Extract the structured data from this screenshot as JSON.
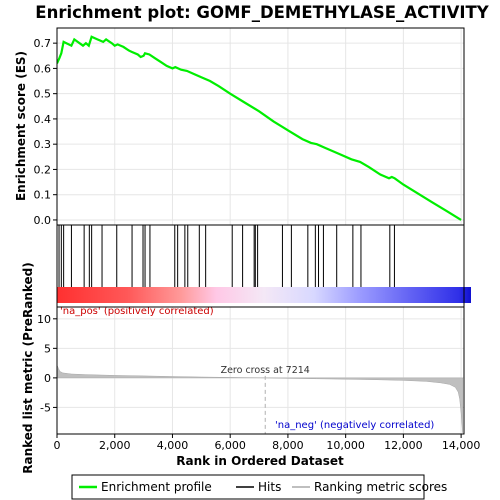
{
  "chart_data": {
    "type": "line",
    "title": "Enrichment plot: GOMF_DEMETHYLASE_ACTIVITY",
    "xlabel": "Rank in Ordered Dataset",
    "ylabel_top": "Enrichment score (ES)",
    "ylabel_bottom": "Ranked list metric (PreRanked)",
    "x_range": [
      0,
      14100
    ],
    "x_ticks": [
      0,
      2000,
      4000,
      6000,
      8000,
      10000,
      12000,
      14000
    ],
    "x_tick_labels": [
      "0",
      "2,000",
      "4,000",
      "6,000",
      "8,000",
      "10,000",
      "12,000",
      "14,000"
    ],
    "es_range": [
      -0.02,
      0.76
    ],
    "es_ticks": [
      0.0,
      0.1,
      0.2,
      0.3,
      0.4,
      0.5,
      0.6,
      0.7
    ],
    "es_tick_labels": [
      "0.0",
      "0.1",
      "0.2",
      "0.3",
      "0.4",
      "0.5",
      "0.6",
      "0.7"
    ],
    "metric_range": [
      -9.5,
      12
    ],
    "metric_ticks": [
      10,
      5,
      0,
      -5
    ],
    "metric_tick_labels": [
      "10",
      "5",
      "0",
      "-5"
    ],
    "es_curve": {
      "x": [
        0,
        80,
        150,
        230,
        500,
        600,
        900,
        1000,
        1100,
        1200,
        1400,
        1600,
        1700,
        1900,
        2000,
        2100,
        2300,
        2500,
        2600,
        2800,
        2900,
        3000,
        3050,
        3200,
        3400,
        3600,
        3800,
        4000,
        4100,
        4300,
        4500,
        4800,
        5000,
        5300,
        5600,
        6000,
        6500,
        7000,
        7500,
        8000,
        8500,
        8800,
        9000,
        9300,
        9500,
        9800,
        10200,
        10500,
        10800,
        11200,
        11500,
        11600,
        11700,
        12000,
        12500,
        13000,
        13500,
        14000
      ],
      "y": [
        0.62,
        0.64,
        0.66,
        0.705,
        0.69,
        0.715,
        0.69,
        0.7,
        0.69,
        0.725,
        0.715,
        0.705,
        0.715,
        0.7,
        0.69,
        0.695,
        0.685,
        0.67,
        0.665,
        0.655,
        0.645,
        0.65,
        0.66,
        0.655,
        0.64,
        0.625,
        0.61,
        0.6,
        0.605,
        0.595,
        0.59,
        0.575,
        0.565,
        0.55,
        0.53,
        0.5,
        0.465,
        0.43,
        0.39,
        0.355,
        0.32,
        0.305,
        0.3,
        0.285,
        0.275,
        0.26,
        0.24,
        0.23,
        0.21,
        0.18,
        0.165,
        0.17,
        0.165,
        0.14,
        0.105,
        0.07,
        0.035,
        0.0
      ]
    },
    "hits": [
      70,
      150,
      230,
      500,
      940,
      1120,
      1200,
      1560,
      2070,
      2600,
      2980,
      3050,
      3220,
      4080,
      4180,
      4430,
      4530,
      4930,
      5150,
      6070,
      6430,
      6830,
      6870,
      6950,
      7810,
      8120,
      8690,
      8950,
      9060,
      9230,
      9690,
      10250,
      10530,
      11530,
      11690
    ],
    "metric_curve": {
      "x": [
        0,
        50,
        100,
        200,
        500,
        1000,
        2000,
        3000,
        4000,
        5000,
        6000,
        7000,
        7214,
        8000,
        9000,
        10000,
        11000,
        12000,
        12800,
        13300,
        13600,
        13800,
        13900,
        13950,
        14000,
        14050
      ],
      "y": [
        2.2,
        1.6,
        1.1,
        0.85,
        0.65,
        0.55,
        0.42,
        0.33,
        0.24,
        0.15,
        0.08,
        0.02,
        0.0,
        -0.08,
        -0.15,
        -0.22,
        -0.3,
        -0.42,
        -0.6,
        -0.85,
        -1.1,
        -1.6,
        -2.4,
        -3.6,
        -6.0,
        -9.3
      ]
    },
    "annotations": {
      "pos": "'na_pos' (positively correlated)",
      "neg": "'na_neg' (negatively correlated)",
      "zero_cross": "Zero cross at 7214",
      "zero_cross_x": 7214
    },
    "legend": [
      "Enrichment profile",
      "Hits",
      "Ranking metric scores"
    ],
    "colors": {
      "es_line": "#00ee00",
      "hits": "#000000",
      "metric_fill": "#bfbfbf",
      "grid": "#e6e6e6",
      "heat_pos": "#ff0000",
      "heat_neg": "#0000ff",
      "pos_text": "#cc0000",
      "neg_text": "#0000cc"
    }
  }
}
